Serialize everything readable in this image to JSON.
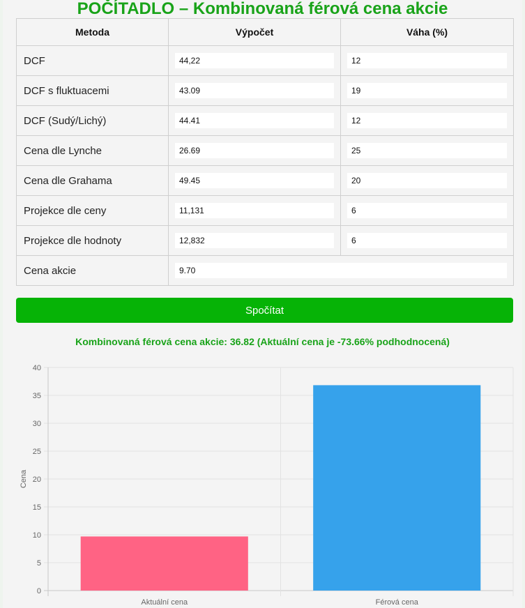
{
  "title": "POČÍTADLO – Kombinovaná férová cena akcie",
  "table": {
    "headers": [
      "Metoda",
      "Výpočet",
      "Váha (%)"
    ],
    "rows": [
      {
        "method": "DCF",
        "value": "44,22",
        "weight": "12"
      },
      {
        "method": "DCF s fluktuacemi",
        "value": "43.09",
        "weight": "19"
      },
      {
        "method": "DCF (Sudý/Lichý)",
        "value": "44.41",
        "weight": "12"
      },
      {
        "method": "Cena dle Lynche",
        "value": "26.69",
        "weight": "25"
      },
      {
        "method": "Cena dle Grahama",
        "value": "49.45",
        "weight": "20"
      },
      {
        "method": "Projekce dle ceny",
        "value": "11,131",
        "weight": "6"
      },
      {
        "method": "Projekce dle hodnoty",
        "value": "12,832",
        "weight": "6"
      }
    ],
    "price_row": {
      "label": "Cena akcie",
      "value": "9.70"
    }
  },
  "button_label": "Spočítat",
  "result_text": "Kombinovaná férová cena akcie: 36.82 (Aktuální cena je -73.66% podhodnocená)",
  "chart_data": {
    "type": "bar",
    "categories": [
      "Aktuální cena",
      "Férová cena"
    ],
    "values": [
      9.7,
      36.82
    ],
    "colors": [
      "#ff6384",
      "#36a2eb"
    ],
    "ylabel": "Cena",
    "xlabel": "",
    "ylim": [
      0,
      40
    ],
    "yticks": [
      0,
      5,
      10,
      15,
      20,
      25,
      30,
      35,
      40
    ],
    "grid": true,
    "legend": "none"
  }
}
